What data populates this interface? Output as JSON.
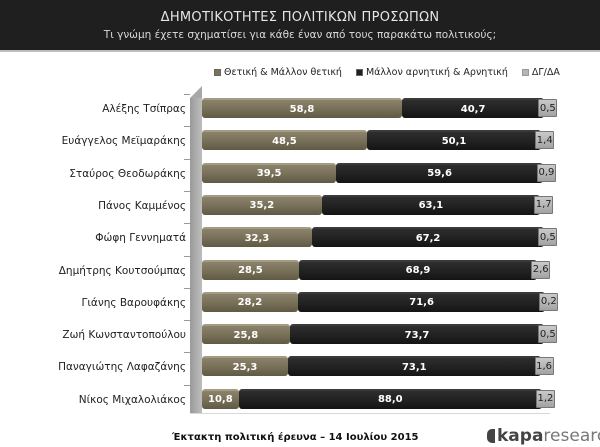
{
  "header": {
    "title": "ΔΗΜΟΤΙΚΟΤΗΤΕΣ ΠΟΛΙΤΙΚΩΝ ΠΡΟΣΩΠΩΝ",
    "subtitle": "Τι γνώμη έχετε σχηματίσει για κάθε έναν από τους παρακάτω πολιτικούς;"
  },
  "legend": [
    {
      "label": "Θετική & Μάλλον θετική",
      "color": "#7a7259"
    },
    {
      "label": "Μάλλον αρνητική & Αρνητική",
      "color": "#1f1f1f"
    },
    {
      "label": "ΔΓ/ΔΑ",
      "color": "#b5b5b5"
    }
  ],
  "footer": {
    "source": "Έκτακτη πολιτική έρευνα – 14 Ιουλίου 2015",
    "logo_bold": "kapa",
    "logo_light": "research"
  },
  "chart_data": {
    "type": "bar",
    "orientation": "horizontal",
    "stacked": true,
    "title": "ΔΗΜΟΤΙΚΟΤΗΤΕΣ ΠΟΛΙΤΙΚΩΝ ΠΡΟΣΩΠΩΝ",
    "subtitle": "Τι γνώμη έχετε σχηματίσει για κάθε έναν από τους παρακάτω πολιτικούς;",
    "xlabel": "",
    "ylabel": "",
    "xlim": [
      0,
      100
    ],
    "legend_position": "top",
    "grid": false,
    "categories": [
      "Αλέξης Τσίπρας",
      "Ευάγγελος Μεϊμαράκης",
      "Σταύρος Θεοδωράκης",
      "Πάνος Καμμένος",
      "Φώφη Γεννηματά",
      "Δημήτρης Κουτσούμπας",
      "Γιάνης Βαρουφάκης",
      "Ζωή Κωνσταντοπούλου",
      "Παναγιώτης Λαφαζάνης",
      "Νίκος Μιχαλολιάκος"
    ],
    "series": [
      {
        "name": "Θετική & Μάλλον θετική",
        "values": [
          58.8,
          48.5,
          39.5,
          35.2,
          32.3,
          28.5,
          28.2,
          25.8,
          25.3,
          10.8
        ],
        "labels": [
          "58,8",
          "48,5",
          "39,5",
          "35,2",
          "32,3",
          "28,5",
          "28,2",
          "25,8",
          "25,3",
          "10,8"
        ]
      },
      {
        "name": "Μάλλον αρνητική & Αρνητική",
        "values": [
          40.7,
          50.1,
          59.6,
          63.1,
          67.2,
          68.9,
          71.6,
          73.7,
          73.1,
          88.0
        ],
        "labels": [
          "40,7",
          "50,1",
          "59,6",
          "63,1",
          "67,2",
          "68,9",
          "71,6",
          "73,7",
          "73,1",
          "88,0"
        ]
      },
      {
        "name": "ΔΓ/ΔΑ",
        "values": [
          0.5,
          1.4,
          0.9,
          1.7,
          0.5,
          2.6,
          0.2,
          0.5,
          1.6,
          1.2
        ],
        "labels": [
          "0,5",
          "1,4",
          "0,9",
          "1,7",
          "0,5",
          "2,6",
          "0,2",
          "0,5",
          "1,6",
          "1,2"
        ]
      }
    ],
    "annotations": [
      "Έκτακτη πολιτική έρευνα – 14 Ιουλίου 2015"
    ]
  }
}
